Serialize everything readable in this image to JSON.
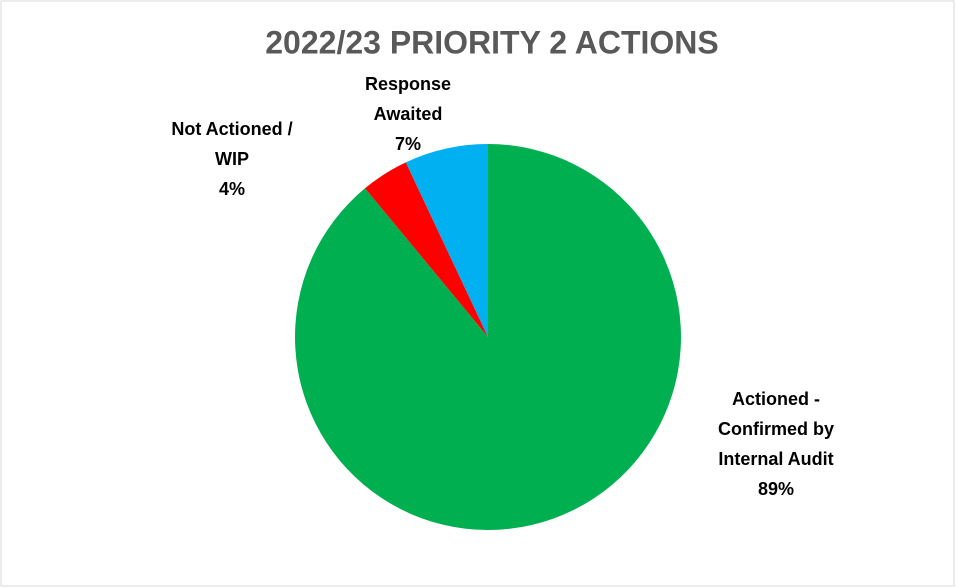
{
  "chart_data": {
    "type": "pie",
    "title": "2022/23 PRIORITY 2 ACTIONS",
    "categories": [
      "Actioned -\nConfirmed by\nInternal Audit",
      "Not Actioned /\nWIP",
      "Response\nAwaited"
    ],
    "values": [
      89,
      4,
      7
    ],
    "value_labels": [
      "89%",
      "4%",
      "7%"
    ],
    "colors": [
      "#00b050",
      "#ff0000",
      "#00b0f0"
    ]
  }
}
